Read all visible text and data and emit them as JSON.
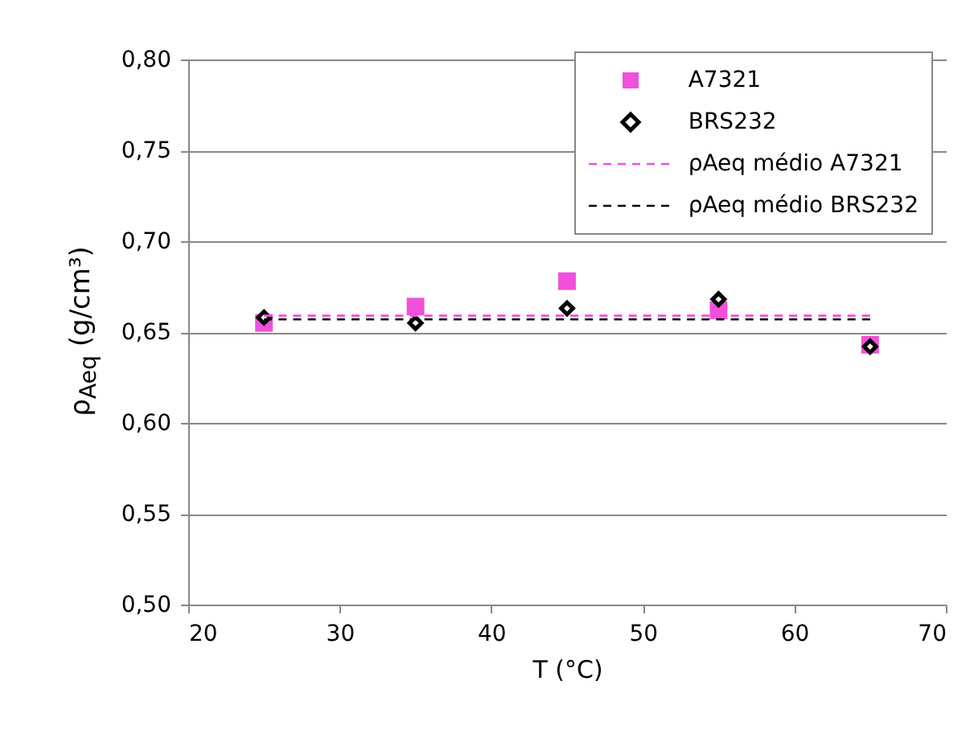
{
  "chart_data": {
    "type": "scatter",
    "xlabel": "T (°C)",
    "ylabel": "ρ$_{Aeq}$ (g/cm³)",
    "x": [
      25,
      35,
      45,
      55,
      65
    ],
    "series": [
      {
        "name": "A7321",
        "color": "#f050dc",
        "marker": "square",
        "values": [
          0.655,
          0.664,
          0.678,
          0.662,
          0.643
        ]
      },
      {
        "name": "BRS232",
        "color": "#000000",
        "marker": "diamond",
        "values": [
          0.658,
          0.655,
          0.663,
          0.668,
          0.642
        ]
      },
      {
        "name": "ρAeq médio A7321",
        "type": "line",
        "line_style": "dashed",
        "color": "#f050dc",
        "values": [
          0.659,
          0.659,
          0.659,
          0.659,
          0.659
        ]
      },
      {
        "name": "ρAeq médio BRS232",
        "type": "line",
        "line_style": "dashed",
        "color": "#000000",
        "values": [
          0.657,
          0.657,
          0.657,
          0.657,
          0.657
        ]
      }
    ],
    "xlim": [
      20,
      70
    ],
    "xticks": [
      20,
      30,
      40,
      50,
      60,
      70
    ],
    "ylim": [
      0.5,
      0.8
    ],
    "yticks": [
      {
        "value": 0.5,
        "label": "0,50"
      },
      {
        "value": 0.55,
        "label": "0,55"
      },
      {
        "value": 0.6,
        "label": "0,60"
      },
      {
        "value": 0.65,
        "label": "0,65"
      },
      {
        "value": 0.7,
        "label": "0,70"
      },
      {
        "value": 0.75,
        "label": "0,75"
      },
      {
        "value": 0.8,
        "label": "0,80"
      }
    ],
    "grid": "y",
    "legend": "top right"
  }
}
